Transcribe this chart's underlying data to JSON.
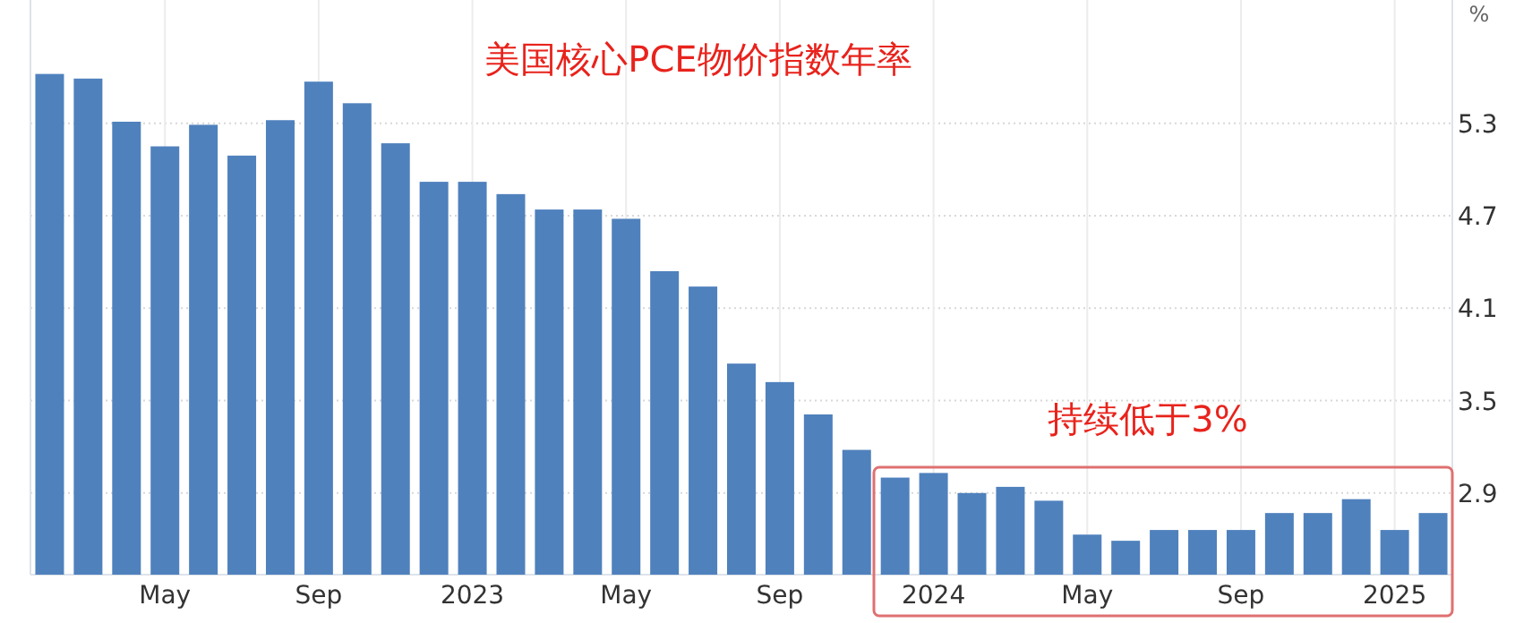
{
  "chart_data": {
    "type": "bar",
    "title": "美国核心PCE物价指数年率",
    "ylabel": "%",
    "categories": [
      null,
      null,
      null,
      "May",
      null,
      null,
      null,
      "Sep",
      null,
      null,
      null,
      "2023",
      null,
      null,
      null,
      "May",
      null,
      null,
      null,
      "Sep",
      null,
      null,
      null,
      "2024",
      null,
      null,
      null,
      "May",
      null,
      null,
      null,
      "Sep",
      null,
      null,
      null,
      "2025",
      null
    ],
    "values": [
      5.62,
      5.59,
      5.31,
      5.15,
      5.29,
      5.09,
      5.32,
      5.57,
      5.43,
      5.17,
      4.92,
      4.92,
      4.84,
      4.74,
      4.74,
      4.68,
      4.34,
      4.24,
      3.74,
      3.62,
      3.41,
      3.18,
      3.0,
      3.03,
      2.9,
      2.94,
      2.85,
      2.63,
      2.59,
      2.66,
      2.66,
      2.66,
      2.77,
      2.77,
      2.86,
      2.66,
      2.77
    ],
    "color": "#4f81bd",
    "ylim": [
      2.37,
      6.1
    ],
    "yticks": [
      2.9,
      3.5,
      4.1,
      4.7,
      5.3
    ],
    "grid": true,
    "annotations": [
      "持续低于3%"
    ]
  }
}
